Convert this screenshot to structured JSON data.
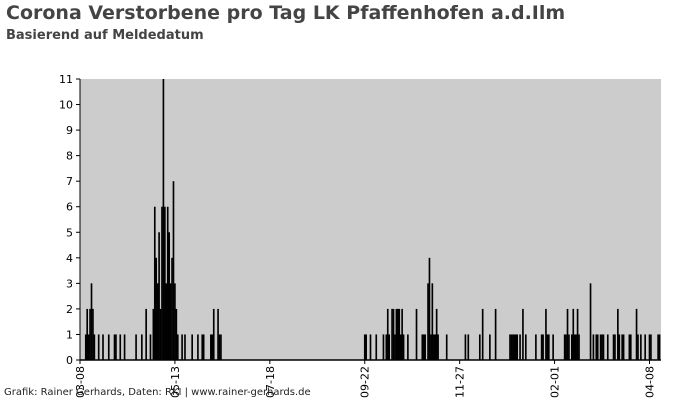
{
  "chart_data": {
    "type": "bar",
    "title": "Corona Verstorbene pro Tag LK Pfaffenhofen a.d.Ilm",
    "subtitle": "Basierend auf Meldedatum",
    "xlabel": "",
    "ylabel": "",
    "ylim": [
      0,
      11
    ],
    "yticks": [
      0,
      1,
      2,
      3,
      4,
      5,
      6,
      7,
      8,
      9,
      10,
      11
    ],
    "x_start": "2020-03-08",
    "x_end": "2021-04-16",
    "xticks": [
      "03-08",
      "05-13",
      "07-18",
      "09-22",
      "11-27",
      "02-01",
      "04-08",
      "06-13",
      "08-18",
      "10-23",
      "12-28",
      "03-04",
      "05-09",
      "07-14",
      "09-18",
      "11-23",
      "01-28",
      "04-04"
    ],
    "grid": false,
    "colors": {
      "plot_background": "#cccccc",
      "bar": "#000000",
      "text": "#444444"
    },
    "points": [
      [
        "2020-03-12",
        1
      ],
      [
        "2020-03-13",
        2
      ],
      [
        "2020-03-14",
        1
      ],
      [
        "2020-03-15",
        2
      ],
      [
        "2020-03-16",
        3
      ],
      [
        "2020-03-17",
        2
      ],
      [
        "2020-03-18",
        1
      ],
      [
        "2020-03-21",
        1
      ],
      [
        "2020-03-24",
        1
      ],
      [
        "2020-03-28",
        1
      ],
      [
        "2020-04-01",
        1
      ],
      [
        "2020-04-02",
        1
      ],
      [
        "2020-04-05",
        1
      ],
      [
        "2020-04-08",
        1
      ],
      [
        "2020-04-16",
        1
      ],
      [
        "2020-04-20",
        1
      ],
      [
        "2020-04-23",
        2
      ],
      [
        "2020-04-26",
        1
      ],
      [
        "2020-04-28",
        2
      ],
      [
        "2020-04-29",
        6
      ],
      [
        "2020-04-30",
        4
      ],
      [
        "2020-05-01",
        3
      ],
      [
        "2020-05-02",
        5
      ],
      [
        "2020-05-03",
        2
      ],
      [
        "2020-05-04",
        6
      ],
      [
        "2020-05-05",
        11
      ],
      [
        "2020-05-06",
        6
      ],
      [
        "2020-05-07",
        3
      ],
      [
        "2020-05-08",
        6
      ],
      [
        "2020-05-09",
        5
      ],
      [
        "2020-05-10",
        3
      ],
      [
        "2020-05-11",
        4
      ],
      [
        "2020-05-12",
        7
      ],
      [
        "2020-05-13",
        3
      ],
      [
        "2020-05-14",
        2
      ],
      [
        "2020-05-15",
        1
      ],
      [
        "2020-05-18",
        1
      ],
      [
        "2020-05-20",
        1
      ],
      [
        "2020-05-25",
        1
      ],
      [
        "2020-05-29",
        1
      ],
      [
        "2020-06-01",
        1
      ],
      [
        "2020-06-02",
        1
      ],
      [
        "2020-06-07",
        1
      ],
      [
        "2020-06-08",
        1
      ],
      [
        "2020-06-09",
        2
      ],
      [
        "2020-06-12",
        2
      ],
      [
        "2020-06-13",
        1
      ],
      [
        "2020-06-14",
        1
      ],
      [
        "2020-09-22",
        1
      ],
      [
        "2020-09-23",
        1
      ],
      [
        "2020-09-26",
        1
      ],
      [
        "2020-09-30",
        1
      ],
      [
        "2020-10-05",
        1
      ],
      [
        "2020-10-07",
        1
      ],
      [
        "2020-10-08",
        2
      ],
      [
        "2020-10-09",
        1
      ],
      [
        "2020-10-11",
        2
      ],
      [
        "2020-10-12",
        2
      ],
      [
        "2020-10-13",
        1
      ],
      [
        "2020-10-14",
        2
      ],
      [
        "2020-10-15",
        2
      ],
      [
        "2020-10-16",
        2
      ],
      [
        "2020-10-17",
        1
      ],
      [
        "2020-10-18",
        2
      ],
      [
        "2020-10-19",
        1
      ],
      [
        "2020-10-22",
        1
      ],
      [
        "2020-10-28",
        2
      ],
      [
        "2020-11-01",
        1
      ],
      [
        "2020-11-02",
        1
      ],
      [
        "2020-11-03",
        1
      ],
      [
        "2020-11-05",
        3
      ],
      [
        "2020-11-06",
        4
      ],
      [
        "2020-11-07",
        1
      ],
      [
        "2020-11-08",
        3
      ],
      [
        "2020-11-09",
        1
      ],
      [
        "2020-11-10",
        1
      ],
      [
        "2020-11-11",
        2
      ],
      [
        "2020-11-12",
        1
      ],
      [
        "2020-11-18",
        1
      ],
      [
        "2020-12-01",
        1
      ],
      [
        "2020-12-03",
        1
      ],
      [
        "2020-12-11",
        1
      ],
      [
        "2020-12-13",
        2
      ],
      [
        "2020-12-18",
        1
      ],
      [
        "2020-12-22",
        2
      ],
      [
        "2021-01-01",
        1
      ],
      [
        "2021-01-02",
        1
      ],
      [
        "2021-01-03",
        1
      ],
      [
        "2021-01-04",
        1
      ],
      [
        "2021-01-05",
        1
      ],
      [
        "2021-01-06",
        1
      ],
      [
        "2021-01-08",
        1
      ],
      [
        "2021-01-10",
        2
      ],
      [
        "2021-01-12",
        1
      ],
      [
        "2021-01-19",
        1
      ],
      [
        "2021-01-23",
        1
      ],
      [
        "2021-01-24",
        1
      ],
      [
        "2021-01-26",
        2
      ],
      [
        "2021-01-27",
        1
      ],
      [
        "2021-01-28",
        1
      ],
      [
        "2021-01-31",
        1
      ],
      [
        "2021-02-08",
        1
      ],
      [
        "2021-02-09",
        1
      ],
      [
        "2021-02-10",
        2
      ],
      [
        "2021-02-11",
        1
      ],
      [
        "2021-02-13",
        1
      ],
      [
        "2021-02-14",
        2
      ],
      [
        "2021-02-15",
        1
      ],
      [
        "2021-02-16",
        1
      ],
      [
        "2021-02-17",
        2
      ],
      [
        "2021-02-18",
        1
      ],
      [
        "2021-02-26",
        3
      ],
      [
        "2021-02-28",
        1
      ],
      [
        "2021-03-02",
        1
      ],
      [
        "2021-03-03",
        1
      ],
      [
        "2021-03-05",
        1
      ],
      [
        "2021-03-06",
        1
      ],
      [
        "2021-03-07",
        1
      ],
      [
        "2021-03-10",
        1
      ],
      [
        "2021-03-14",
        1
      ],
      [
        "2021-03-15",
        1
      ],
      [
        "2021-03-17",
        2
      ],
      [
        "2021-03-18",
        1
      ],
      [
        "2021-03-20",
        1
      ],
      [
        "2021-03-21",
        1
      ],
      [
        "2021-03-25",
        1
      ],
      [
        "2021-03-26",
        1
      ],
      [
        "2021-03-30",
        2
      ],
      [
        "2021-03-31",
        1
      ],
      [
        "2021-04-02",
        1
      ],
      [
        "2021-04-05",
        1
      ],
      [
        "2021-04-08",
        1
      ],
      [
        "2021-04-09",
        1
      ],
      [
        "2021-04-14",
        1
      ],
      [
        "2021-04-15",
        1
      ]
    ]
  },
  "footer": {
    "credit": "Grafik: Rainer Gerhards, Daten: RKI | www.rainer-gerhards.de"
  }
}
